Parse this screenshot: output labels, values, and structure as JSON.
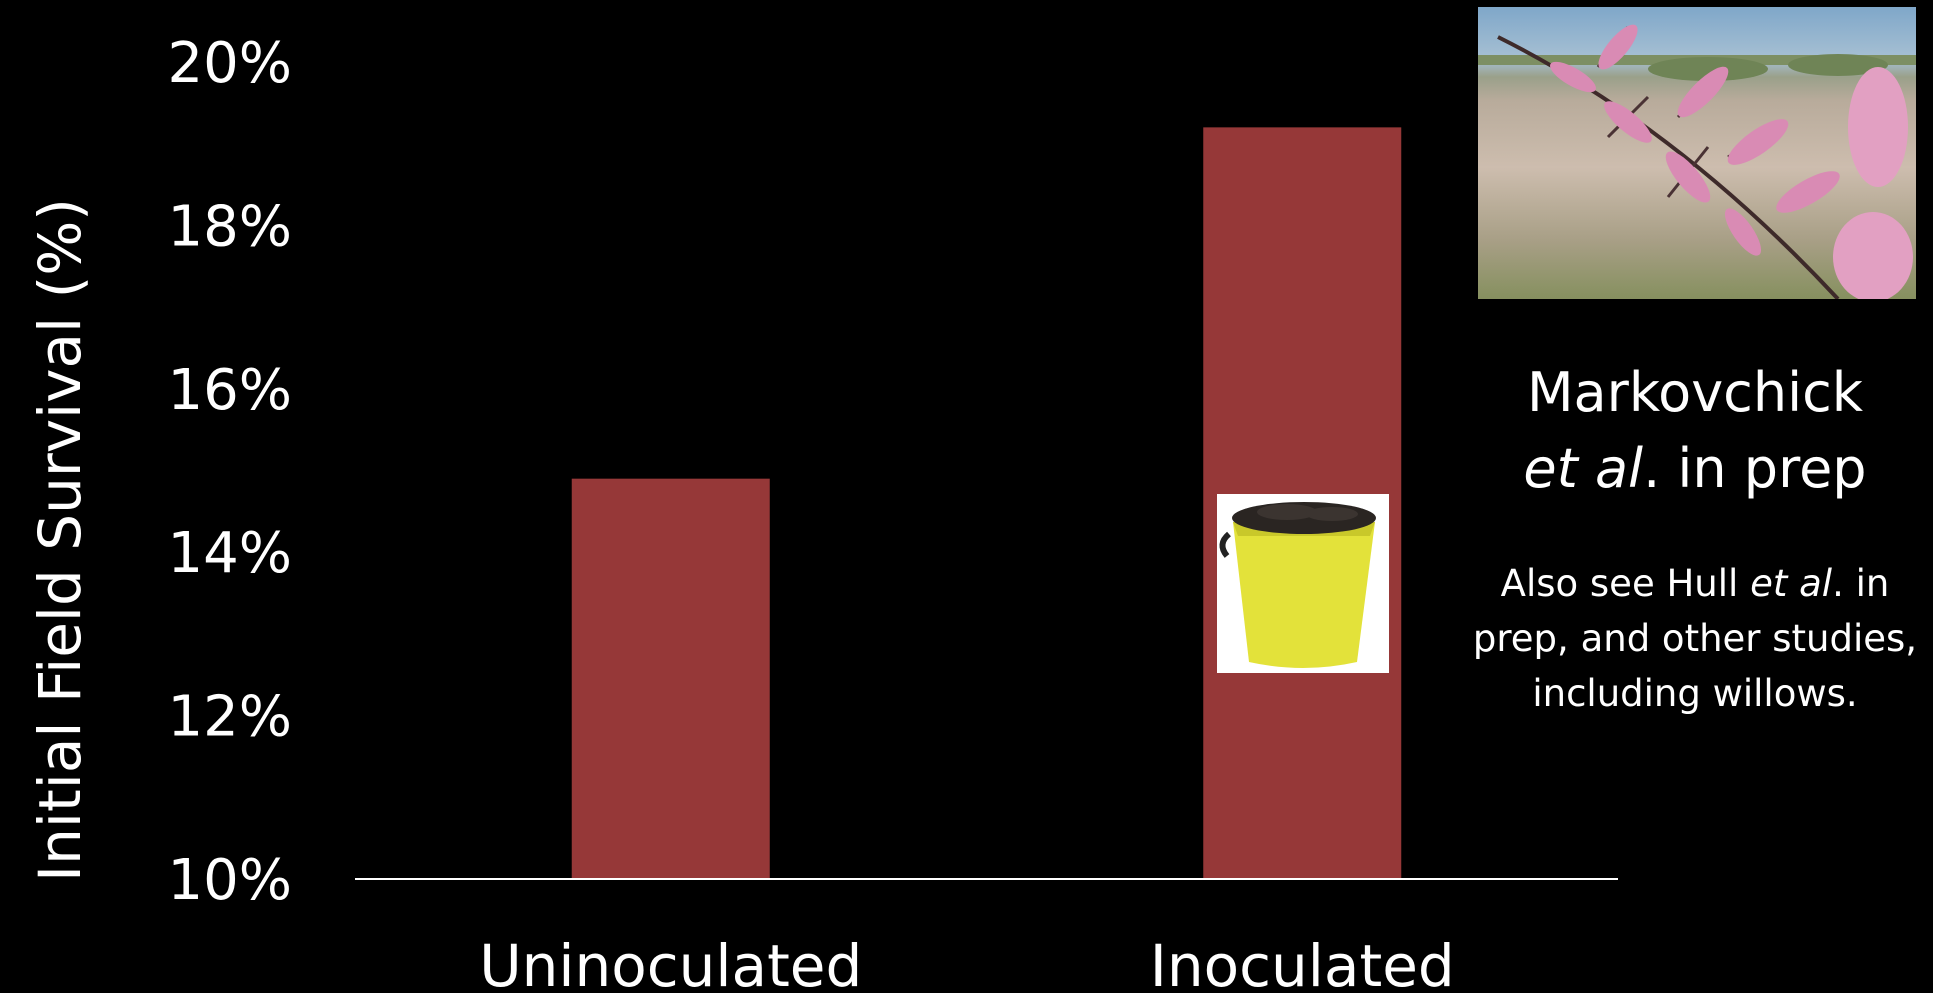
{
  "chart_data": {
    "type": "bar",
    "categories": [
      "Uninoculated",
      "Inoculated"
    ],
    "values": [
      14.9,
      19.2
    ],
    "ylabel": "Initial Field Survival (%)",
    "xlabel": "",
    "ylim": [
      10,
      20
    ],
    "yticks": [
      "10%",
      "12%",
      "14%",
      "16%",
      "18%",
      "20%"
    ],
    "ytick_values": [
      10,
      12,
      14,
      16,
      18,
      20
    ],
    "bar_color": "#963838",
    "grid": false
  },
  "annotation": {
    "citation_name": "Markovchick",
    "citation_etal": "et al",
    "citation_rest": ". in prep",
    "note_part1": "Also see Hull ",
    "note_etal": "et al",
    "note_part2": ". in prep, and other studies, including willows."
  },
  "images": {
    "photo_icon": "tamarisk-flowers-photo",
    "bucket_icon": "yellow-soil-bucket"
  }
}
